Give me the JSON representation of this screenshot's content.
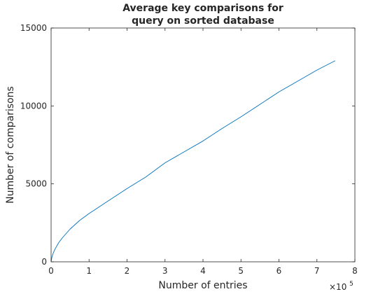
{
  "chart_data": {
    "type": "line",
    "title": [
      "Average key comparisons for",
      "query on sorted database"
    ],
    "xlabel": "Number of entries",
    "ylabel": "Number of comparisons",
    "xlim": [
      0,
      800000
    ],
    "ylim": [
      0,
      15000
    ],
    "x_multiplier_label": "×10",
    "x_multiplier_exponent": "5",
    "xticks": [
      0,
      100000,
      200000,
      300000,
      400000,
      500000,
      600000,
      700000,
      800000
    ],
    "xtick_labels": [
      "0",
      "1",
      "2",
      "3",
      "4",
      "5",
      "6",
      "7",
      "8"
    ],
    "yticks": [
      0,
      5000,
      10000,
      15000
    ],
    "ytick_labels": [
      "0",
      "5000",
      "10000",
      "15000"
    ],
    "grid": false,
    "box": true,
    "line_color": "#0072bd",
    "series": [
      {
        "x": [
          0,
          2000,
          5000,
          10000,
          20000,
          30000,
          50000,
          75000,
          100000,
          125000,
          150000,
          200000,
          250000,
          300000,
          350000,
          400000,
          450000,
          500000,
          550000,
          600000,
          650000,
          700000,
          748000
        ],
        "values": [
          0,
          280,
          520,
          800,
          1230,
          1550,
          2100,
          2650,
          3100,
          3500,
          3900,
          4700,
          5450,
          6350,
          7050,
          7750,
          8550,
          9300,
          10100,
          10900,
          11600,
          12300,
          12900
        ]
      }
    ]
  }
}
